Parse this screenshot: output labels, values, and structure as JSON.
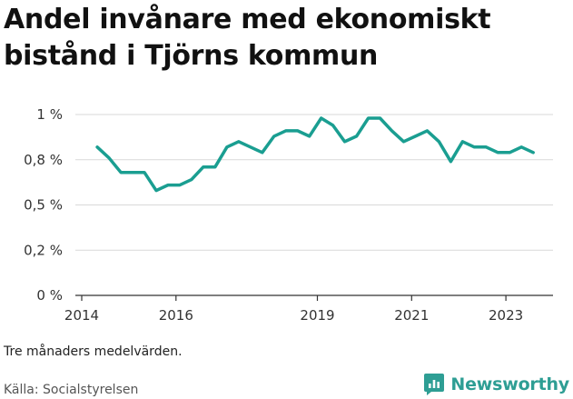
{
  "title": "Andel invånare med ekonomiskt bistånd i Tjörns kommun",
  "note": "Tre månaders medelvärden.",
  "source": "Källa: Socialstyrelsen",
  "brand": {
    "name": "Newsworthy",
    "icon": "newsworthy-logo-icon",
    "color": "#2e9e94"
  },
  "colors": {
    "line": "#1a9e91",
    "grid": "#d9d9d9",
    "axis": "#333333"
  },
  "chart_data": {
    "type": "line",
    "title": "Andel invånare med ekonomiskt bistånd i Tjörns kommun",
    "xlabel": "",
    "ylabel": "",
    "ylim": [
      0,
      1
    ],
    "y_ticks": [
      0,
      0.25,
      0.5,
      0.75,
      1
    ],
    "y_tick_labels": [
      "0 %",
      "0,2 %",
      "0,5 %",
      "0,8 %",
      "1 %"
    ],
    "xlim": [
      2014.0,
      2024.0
    ],
    "x_ticks": [
      2014,
      2016,
      2019,
      2021,
      2023
    ],
    "x_tick_labels": [
      "2014",
      "2016",
      "2019",
      "2021",
      "2023"
    ],
    "grid": true,
    "series": [
      {
        "x": [
          2014.33,
          2014.58,
          2014.83,
          2015.08,
          2015.33,
          2015.58,
          2015.83,
          2016.08,
          2016.33,
          2016.58,
          2016.83,
          2017.08,
          2017.33,
          2017.58,
          2017.83,
          2018.08,
          2018.33,
          2018.58,
          2018.83,
          2019.08,
          2019.33,
          2019.58,
          2019.83,
          2020.08,
          2020.33,
          2020.58,
          2020.83,
          2021.08,
          2021.33,
          2021.58,
          2021.83,
          2022.08,
          2022.33,
          2022.58,
          2022.83,
          2023.08,
          2023.33,
          2023.58
        ],
        "values": [
          0.82,
          0.76,
          0.68,
          0.68,
          0.68,
          0.58,
          0.61,
          0.61,
          0.64,
          0.71,
          0.71,
          0.82,
          0.85,
          0.82,
          0.79,
          0.88,
          0.91,
          0.91,
          0.88,
          0.98,
          0.94,
          0.85,
          0.88,
          0.98,
          0.98,
          0.91,
          0.85,
          0.88,
          0.91,
          0.85,
          0.74,
          0.85,
          0.82,
          0.82,
          0.79,
          0.79,
          0.82,
          0.79
        ]
      }
    ]
  }
}
